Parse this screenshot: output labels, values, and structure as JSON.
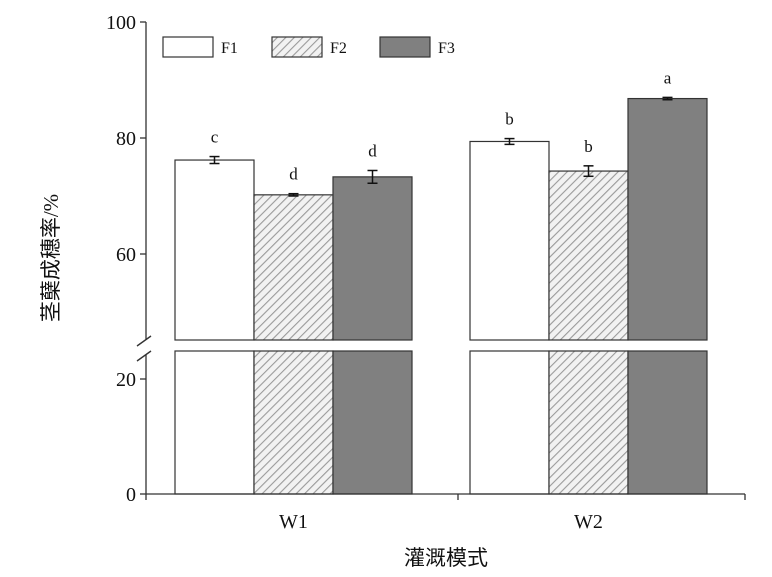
{
  "chart_data": {
    "type": "bar",
    "xlabel": "灌溉模式",
    "ylabel": "茎蘖成穗率/%",
    "categories": [
      "W1",
      "W2"
    ],
    "series": [
      {
        "name": "F1",
        "values": [
          76.2,
          79.4
        ],
        "errors": [
          0.6,
          0.5
        ],
        "letters": [
          "c",
          "b"
        ],
        "pattern": "white"
      },
      {
        "name": "F2",
        "values": [
          70.2,
          74.3
        ],
        "errors": [
          0.2,
          0.9
        ],
        "letters": [
          "d",
          "b"
        ],
        "pattern": "hatch"
      },
      {
        "name": "F3",
        "values": [
          73.3,
          86.8
        ],
        "errors": [
          1.1,
          0.2
        ],
        "letters": [
          "d",
          "a"
        ],
        "pattern": "gray"
      }
    ],
    "yticks": [
      0,
      20,
      60,
      80,
      100
    ],
    "axis_break": [
      25,
      45
    ],
    "ylim": [
      0,
      100
    ],
    "legend_position": "top-left",
    "grid": false,
    "colors": {
      "F1": "#ffffff",
      "F2": "#e6e6e6",
      "F3": "#808080",
      "edge": "#333333"
    }
  }
}
